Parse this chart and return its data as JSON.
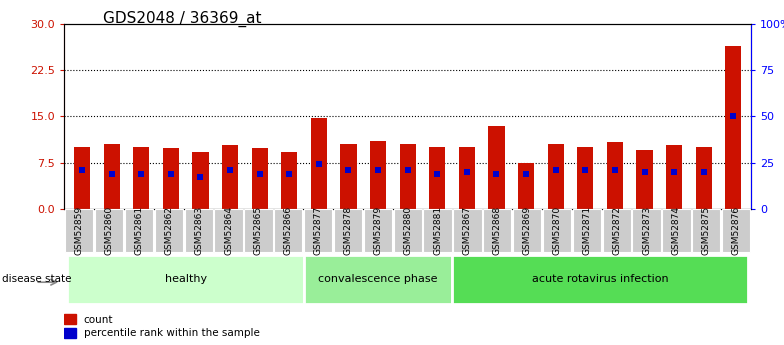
{
  "title": "GDS2048 / 36369_at",
  "samples": [
    "GSM52859",
    "GSM52860",
    "GSM52861",
    "GSM52862",
    "GSM52863",
    "GSM52864",
    "GSM52865",
    "GSM52866",
    "GSM52877",
    "GSM52878",
    "GSM52879",
    "GSM52880",
    "GSM52881",
    "GSM52867",
    "GSM52868",
    "GSM52869",
    "GSM52870",
    "GSM52871",
    "GSM52872",
    "GSM52873",
    "GSM52874",
    "GSM52875",
    "GSM52876"
  ],
  "count_values": [
    10.0,
    10.6,
    10.0,
    9.8,
    9.2,
    10.3,
    9.8,
    9.2,
    14.8,
    10.5,
    11.0,
    10.5,
    10.0,
    10.0,
    13.5,
    7.5,
    10.5,
    10.0,
    10.8,
    9.5,
    10.3,
    10.0,
    26.5
  ],
  "percentile_values": [
    21,
    19,
    19,
    19,
    17,
    21,
    19,
    19,
    24,
    21,
    21,
    21,
    19,
    20,
    19,
    19,
    21,
    21,
    21,
    20,
    20,
    20,
    50
  ],
  "groups": [
    {
      "label": "healthy",
      "start": 0,
      "end": 8,
      "color": "#ccffcc"
    },
    {
      "label": "convalescence phase",
      "start": 8,
      "end": 13,
      "color": "#99ee99"
    },
    {
      "label": "acute rotavirus infection",
      "start": 13,
      "end": 23,
      "color": "#55dd55"
    }
  ],
  "ylim_left": [
    0,
    30
  ],
  "ylim_right": [
    0,
    100
  ],
  "yticks_left": [
    0,
    7.5,
    15,
    22.5,
    30
  ],
  "yticks_right": [
    0,
    25,
    50,
    75,
    100
  ],
  "bar_color": "#cc1100",
  "dot_color": "#0000cc",
  "tick_box_color": "#cccccc",
  "title_fontsize": 11,
  "tick_fontsize": 6.5,
  "group_fontsize": 8
}
